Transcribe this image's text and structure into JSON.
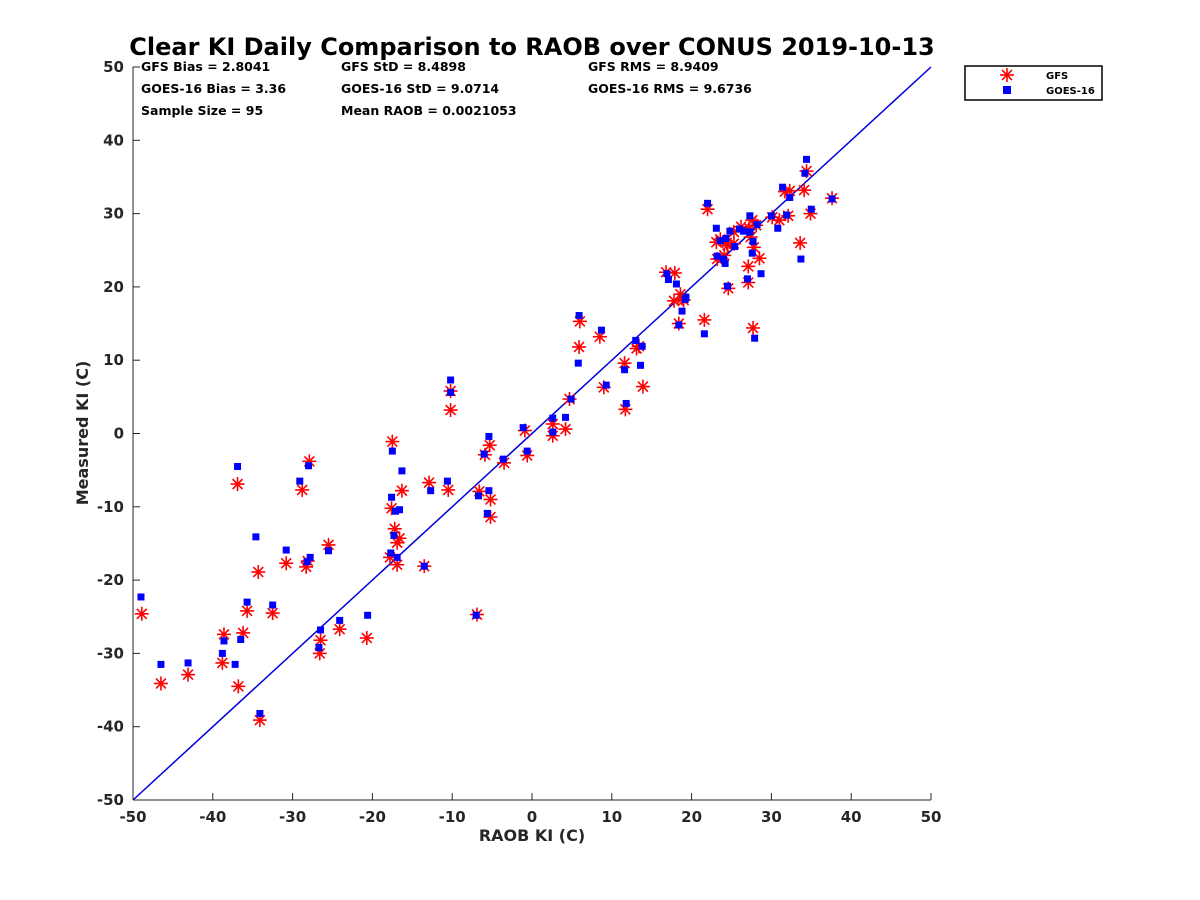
{
  "chart_data": {
    "type": "scatter",
    "title": "Clear KI Daily Comparison to RAOB over CONUS 2019-10-13",
    "xlabel": "RAOB KI (C)",
    "ylabel": "Measured KI (C)",
    "xlim": [
      -50,
      50
    ],
    "ylim": [
      -50,
      50
    ],
    "xticks": [
      "-50",
      "-40",
      "-30",
      "-20",
      "-10",
      "0",
      "10",
      "20",
      "30",
      "40",
      "50"
    ],
    "yticks": [
      "-50",
      "-40",
      "-30",
      "-20",
      "-10",
      "0",
      "10",
      "20",
      "30",
      "40",
      "50"
    ],
    "grid": false,
    "reference_line": {
      "type": "one-to-one",
      "color": "#0000dd"
    },
    "legend": {
      "placement": "outside top-right",
      "entries": [
        {
          "name": "GFS",
          "marker": "asterisk",
          "color": "#ff0000"
        },
        {
          "name": "GOES-16",
          "marker": "square",
          "color": "#0000ff"
        }
      ]
    },
    "stats": {
      "row1": [
        "GFS Bias = 2.8041",
        "GFS StD = 8.4898",
        "GFS RMS = 8.9409"
      ],
      "row2": [
        "GOES-16 Bias = 3.36",
        "GOES-16 StD = 9.0714",
        "GOES-16 RMS = 9.6736"
      ],
      "row3": [
        "Sample Size = 95",
        "Mean RAOB = 0.0021053"
      ]
    },
    "series": [
      {
        "name": "GFS",
        "color": "#ff0000",
        "marker": "asterisk",
        "points": [
          [
            -48.9,
            -24.6
          ],
          [
            -46.5,
            -34.1
          ],
          [
            -43.1,
            -32.9
          ],
          [
            -38.6,
            -27.4
          ],
          [
            -38.8,
            -31.3
          ],
          [
            -36.8,
            -34.5
          ],
          [
            -36.2,
            -27.2
          ],
          [
            -35.7,
            -24.2
          ],
          [
            -34.3,
            -18.9
          ],
          [
            -34.1,
            -39.1
          ],
          [
            -36.9,
            -6.9
          ],
          [
            -32.5,
            -24.5
          ],
          [
            -30.8,
            -17.7
          ],
          [
            -28.8,
            -7.7
          ],
          [
            -28.3,
            -18.2
          ],
          [
            -28.1,
            -17.4
          ],
          [
            -27.9,
            -3.8
          ],
          [
            -26.5,
            -28.2
          ],
          [
            -26.6,
            -30.0
          ],
          [
            -25.5,
            -15.2
          ],
          [
            -24.1,
            -26.7
          ],
          [
            -20.7,
            -27.9
          ],
          [
            -17.5,
            -1.1
          ],
          [
            -17.6,
            -10.2
          ],
          [
            -17.2,
            -13.0
          ],
          [
            -16.9,
            -14.9
          ],
          [
            -16.6,
            -14.3
          ],
          [
            -16.9,
            -17.9
          ],
          [
            -17.8,
            -16.9
          ],
          [
            -16.3,
            -7.8
          ],
          [
            -13.5,
            -18.1
          ],
          [
            -12.9,
            -6.7
          ],
          [
            -10.2,
            5.8
          ],
          [
            -10.2,
            3.2
          ],
          [
            -10.5,
            -7.7
          ],
          [
            -6.9,
            -24.7
          ],
          [
            -6.6,
            -7.9
          ],
          [
            -5.3,
            -1.6
          ],
          [
            -5.2,
            -9.0
          ],
          [
            -5.2,
            -11.4
          ],
          [
            -3.5,
            -4.0
          ],
          [
            -0.6,
            -3.0
          ],
          [
            -0.9,
            0.4
          ],
          [
            2.6,
            -0.3
          ],
          [
            2.6,
            1.3
          ],
          [
            4.2,
            0.6
          ],
          [
            4.7,
            4.7
          ],
          [
            5.9,
            11.8
          ],
          [
            6.0,
            15.3
          ],
          [
            8.5,
            13.2
          ],
          [
            11.7,
            3.3
          ],
          [
            11.6,
            9.6
          ],
          [
            13.1,
            11.6
          ],
          [
            13.4,
            11.9
          ],
          [
            13.9,
            6.4
          ],
          [
            16.8,
            22.0
          ],
          [
            17.9,
            21.9
          ],
          [
            17.8,
            18.1
          ],
          [
            18.4,
            15.0
          ],
          [
            18.8,
            18.4
          ],
          [
            18.6,
            19.0
          ],
          [
            21.6,
            15.5
          ],
          [
            22.0,
            30.6
          ],
          [
            23.1,
            26.1
          ],
          [
            23.2,
            23.8
          ],
          [
            23.6,
            26.5
          ],
          [
            24.1,
            24.3
          ],
          [
            24.4,
            26.0
          ],
          [
            24.6,
            19.8
          ],
          [
            25.3,
            25.9
          ],
          [
            25.3,
            27.5
          ],
          [
            26.2,
            28.2
          ],
          [
            27.1,
            20.6
          ],
          [
            27.1,
            22.8
          ],
          [
            27.4,
            26.8
          ],
          [
            27.7,
            14.4
          ],
          [
            27.8,
            25.4
          ],
          [
            28.1,
            28.4
          ],
          [
            28.5,
            23.9
          ],
          [
            27.6,
            29.1
          ],
          [
            30.1,
            29.5
          ],
          [
            31.0,
            29.1
          ],
          [
            31.7,
            33.0
          ],
          [
            32.1,
            29.7
          ],
          [
            32.3,
            33.1
          ],
          [
            33.6,
            26.0
          ],
          [
            34.1,
            33.2
          ],
          [
            34.4,
            35.8
          ],
          [
            34.9,
            30.0
          ],
          [
            37.6,
            32.1
          ],
          [
            24.5,
            25.7
          ],
          [
            19.0,
            18.2
          ],
          [
            -5.9,
            -2.9
          ],
          [
            9.0,
            6.3
          ],
          [
            27.2,
            28.0
          ]
        ]
      },
      {
        "name": "GOES-16",
        "color": "#0000ff",
        "marker": "square",
        "points": [
          [
            -49.0,
            -22.3
          ],
          [
            -46.5,
            -31.5
          ],
          [
            -43.1,
            -31.3
          ],
          [
            -38.8,
            -30.0
          ],
          [
            -38.6,
            -28.3
          ],
          [
            -37.2,
            -31.5
          ],
          [
            -36.9,
            -4.5
          ],
          [
            -36.5,
            -28.1
          ],
          [
            -35.7,
            -23.0
          ],
          [
            -34.6,
            -14.1
          ],
          [
            -34.1,
            -38.2
          ],
          [
            -32.5,
            -23.4
          ],
          [
            -30.8,
            -15.9
          ],
          [
            -29.1,
            -6.5
          ],
          [
            -28.0,
            -4.4
          ],
          [
            -28.2,
            -17.5
          ],
          [
            -27.8,
            -16.9
          ],
          [
            -26.5,
            -26.8
          ],
          [
            -26.7,
            -29.2
          ],
          [
            -25.5,
            -16.0
          ],
          [
            -24.1,
            -25.5
          ],
          [
            -20.6,
            -24.8
          ],
          [
            -17.7,
            -16.3
          ],
          [
            -17.6,
            -8.7
          ],
          [
            -17.5,
            -2.4
          ],
          [
            -17.3,
            -13.9
          ],
          [
            -17.1,
            -10.6
          ],
          [
            -16.9,
            -16.9
          ],
          [
            -16.6,
            -10.4
          ],
          [
            -16.3,
            -5.1
          ],
          [
            -13.5,
            -18.1
          ],
          [
            -12.7,
            -7.8
          ],
          [
            -10.2,
            7.3
          ],
          [
            -10.2,
            5.6
          ],
          [
            -10.6,
            -6.5
          ],
          [
            -7.0,
            -24.8
          ],
          [
            -6.7,
            -8.5
          ],
          [
            -5.4,
            -0.4
          ],
          [
            -5.4,
            -7.8
          ],
          [
            -5.6,
            -10.9
          ],
          [
            -3.6,
            -3.5
          ],
          [
            -0.6,
            -2.4
          ],
          [
            -1.1,
            0.8
          ],
          [
            2.6,
            2.1
          ],
          [
            2.6,
            0.2
          ],
          [
            4.2,
            2.2
          ],
          [
            4.9,
            4.7
          ],
          [
            5.8,
            9.6
          ],
          [
            5.9,
            16.1
          ],
          [
            8.7,
            14.1
          ],
          [
            11.8,
            4.1
          ],
          [
            11.6,
            8.7
          ],
          [
            13.0,
            12.7
          ],
          [
            13.6,
            9.3
          ],
          [
            13.8,
            11.9
          ],
          [
            16.9,
            21.8
          ],
          [
            17.1,
            21.0
          ],
          [
            18.1,
            20.4
          ],
          [
            18.4,
            14.8
          ],
          [
            18.8,
            16.7
          ],
          [
            19.2,
            18.3
          ],
          [
            21.6,
            13.6
          ],
          [
            22.0,
            31.4
          ],
          [
            23.1,
            28.0
          ],
          [
            23.2,
            24.2
          ],
          [
            23.6,
            26.3
          ],
          [
            24.0,
            23.8
          ],
          [
            24.2,
            23.2
          ],
          [
            24.5,
            20.1
          ],
          [
            24.8,
            27.6
          ],
          [
            25.4,
            25.5
          ],
          [
            26.0,
            27.9
          ],
          [
            26.5,
            27.6
          ],
          [
            27.0,
            21.1
          ],
          [
            27.3,
            29.7
          ],
          [
            27.6,
            24.6
          ],
          [
            27.7,
            26.2
          ],
          [
            27.9,
            13.0
          ],
          [
            28.2,
            28.5
          ],
          [
            28.7,
            21.8
          ],
          [
            30.0,
            29.7
          ],
          [
            30.8,
            28.0
          ],
          [
            31.4,
            33.6
          ],
          [
            31.9,
            29.8
          ],
          [
            32.3,
            32.2
          ],
          [
            33.7,
            23.8
          ],
          [
            34.2,
            35.5
          ],
          [
            34.4,
            37.4
          ],
          [
            35.0,
            30.6
          ],
          [
            37.6,
            32.0
          ],
          [
            24.3,
            26.6
          ],
          [
            19.3,
            18.6
          ],
          [
            -6.0,
            -2.8
          ],
          [
            9.3,
            6.6
          ],
          [
            27.3,
            27.5
          ]
        ]
      }
    ]
  }
}
